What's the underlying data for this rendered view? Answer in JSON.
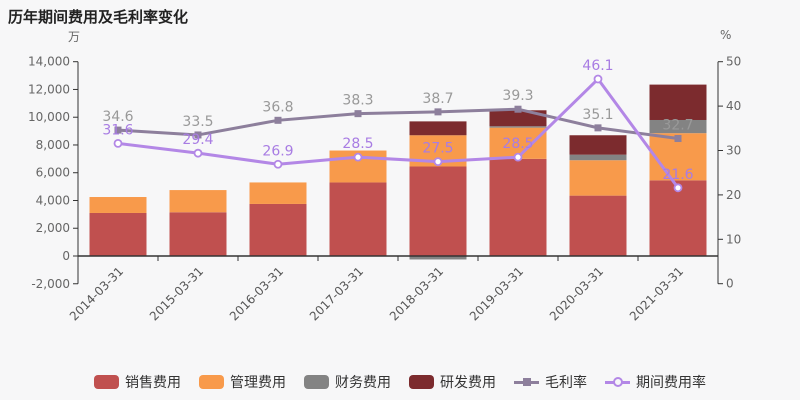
{
  "title": "历年期间费用及毛利率变化",
  "left_axis": {
    "unit": "万",
    "max": 14000,
    "min": -2000,
    "tick_step": 2000,
    "tick_labels": [
      "14,000",
      "12,000",
      "10,000",
      "8,000",
      "6,000",
      "4,000",
      "2,000",
      "0",
      "-2,000"
    ]
  },
  "right_axis": {
    "unit": "%",
    "max": 50,
    "min": 0,
    "tick_step": 10,
    "tick_labels": [
      "50",
      "40",
      "30",
      "20",
      "10",
      "0"
    ]
  },
  "chart_data": {
    "type": "bar",
    "title": "历年期间费用及毛利率变化",
    "categories": [
      "2014-03-31",
      "2015-03-31",
      "2016-03-31",
      "2017-03-31",
      "2018-03-31",
      "2019-03-31",
      "2020-03-31",
      "2021-03-31"
    ],
    "bar_unit": "万",
    "line_unit": "%",
    "ylim_left": [
      -2000,
      14000
    ],
    "ylim_right": [
      0,
      50
    ],
    "grid": false,
    "legend_position": "bottom",
    "bar_series": [
      {
        "key": "sales-expense",
        "name": "销售费用",
        "color": "#c0504f",
        "values": [
          3100,
          3150,
          3750,
          5300,
          6450,
          7000,
          4350,
          5450
        ]
      },
      {
        "key": "admin-expense",
        "name": "管理费用",
        "color": "#f89a4b",
        "values": [
          1150,
          1600,
          1550,
          2300,
          2250,
          2250,
          2550,
          3400
        ]
      },
      {
        "key": "finance-expense",
        "name": "财务费用",
        "color": "#838383",
        "values": [
          0,
          0,
          0,
          0,
          -250,
          100,
          400,
          950
        ]
      },
      {
        "key": "rd-expense",
        "name": "研发费用",
        "color": "#7c2b2e",
        "values": [
          0,
          0,
          0,
          0,
          1000,
          1150,
          1400,
          2550
        ]
      }
    ],
    "line_series": [
      {
        "key": "gross-margin",
        "name": "毛利率",
        "color": "#8d7f9c",
        "marker": "square",
        "label_color": "#999999",
        "values": [
          34.6,
          33.5,
          36.8,
          38.3,
          38.7,
          39.3,
          35.1,
          32.7
        ]
      },
      {
        "key": "period-expense-ratio",
        "name": "期间费用率",
        "color": "#b387e6",
        "marker": "circle-hollow",
        "label_color": "#a87ce3",
        "values": [
          31.6,
          29.4,
          26.9,
          28.5,
          27.5,
          28.5,
          46.1,
          21.6
        ]
      }
    ]
  },
  "legend": {
    "items": [
      {
        "key": "sales-expense",
        "label": "销售费用",
        "type": "rect",
        "color": "#c0504f"
      },
      {
        "key": "admin-expense",
        "label": "管理费用",
        "type": "rect",
        "color": "#f89a4b"
      },
      {
        "key": "finance-expense",
        "label": "财务费用",
        "type": "rect",
        "color": "#838383"
      },
      {
        "key": "rd-expense",
        "label": "研发费用",
        "type": "rect",
        "color": "#7c2b2e"
      },
      {
        "key": "gross-margin",
        "label": "毛利率",
        "type": "line-square",
        "color": "#8d7f9c"
      },
      {
        "key": "period-expense-ratio",
        "label": "期间费用率",
        "type": "line-circle",
        "color": "#b387e6"
      }
    ]
  },
  "colors": {
    "background": "#f7f7f8",
    "axis_line": "#333333",
    "tick_label": "#666666",
    "category_label": "#555555"
  }
}
